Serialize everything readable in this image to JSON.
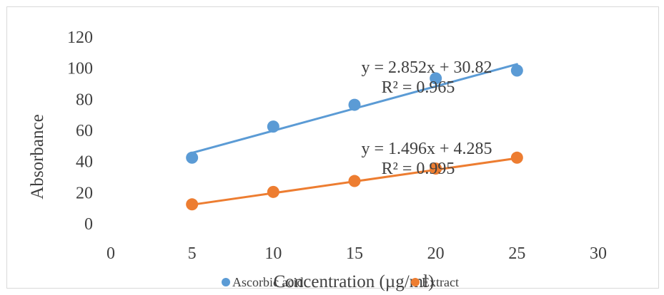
{
  "chart_data": {
    "type": "scatter",
    "title": "",
    "xlabel": "Concentration (µg/ml)",
    "ylabel": "Absorbance",
    "xlim": [
      0,
      30
    ],
    "ylim": [
      0,
      120
    ],
    "x_ticks": [
      "0",
      "5",
      "10",
      "15",
      "20",
      "25",
      "30"
    ],
    "y_ticks": [
      "0",
      "20",
      "40",
      "60",
      "80",
      "100",
      "120"
    ],
    "grid": false,
    "legend_position": "bottom",
    "series": [
      {
        "name": "Ascorbic acid",
        "color": "#5B9BD5",
        "x": [
          5,
          10,
          15,
          20,
          25
        ],
        "y": [
          42,
          62,
          76,
          93,
          98
        ],
        "trendline": {
          "slope": 2.852,
          "intercept": 30.82,
          "equation": "y = 2.852x + 30.82",
          "r2": "R² = 0.965"
        }
      },
      {
        "name": "Extract",
        "color": "#ED7D31",
        "x": [
          5,
          10,
          15,
          20,
          25
        ],
        "y": [
          12,
          20,
          27,
          35,
          42
        ],
        "trendline": {
          "slope": 1.496,
          "intercept": 4.285,
          "equation": "y = 1.496x + 4.285",
          "r2": "R² = 0.995"
        }
      }
    ]
  }
}
